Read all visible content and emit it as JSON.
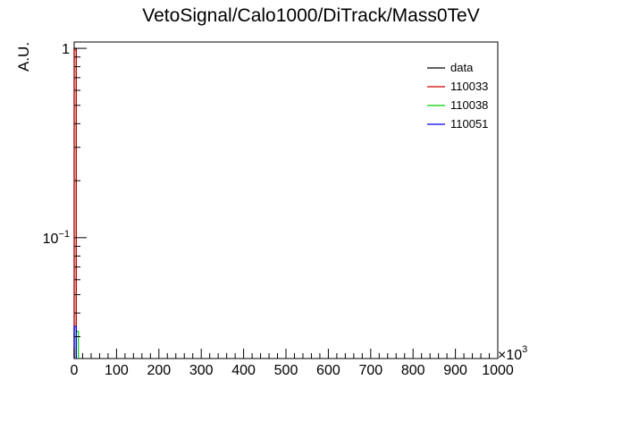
{
  "chart_data": {
    "type": "line",
    "title": "VetoSignal/Calo1000/DiTrack/Mass0TeV",
    "ylabel": "A.U.",
    "xlabel": "",
    "x_multiplier": "×10",
    "x_multiplier_exp": "3",
    "xlim": [
      0,
      1000
    ],
    "ylim": [
      0.023,
      1.08
    ],
    "yscale": "log",
    "grid": false,
    "legend_position": "top-right",
    "xticks": [
      0,
      100,
      200,
      300,
      400,
      500,
      600,
      700,
      800,
      900,
      1000
    ],
    "yticks": [
      {
        "value": 1,
        "base": "1",
        "exp": ""
      },
      {
        "value": 0.1,
        "base": "10",
        "exp": "−1"
      }
    ],
    "series": [
      {
        "name": "data",
        "color": "#000000",
        "x_from": 0,
        "x_to": 5,
        "value": 1.0
      },
      {
        "name": "110033",
        "color": "#cc0000",
        "x_from": 0,
        "x_to": 5,
        "value": 0.98
      },
      {
        "name": "110038",
        "color": "#00cc00",
        "x_from": 5,
        "x_to": 10,
        "value": 0.032
      },
      {
        "name": "110051",
        "color": "#0000ee",
        "x_from": 0,
        "x_to": 5,
        "value": 0.034
      }
    ]
  }
}
